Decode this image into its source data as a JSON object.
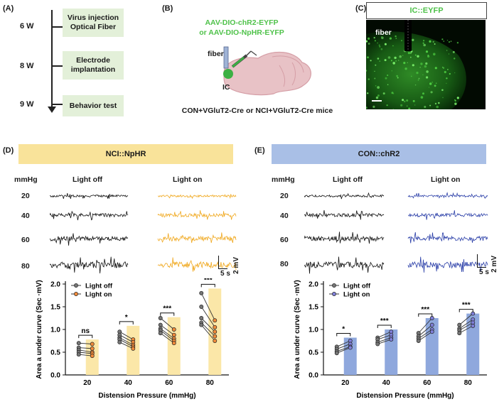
{
  "panels": {
    "A": {
      "label": "(A)",
      "weeks": [
        "6 W",
        "8 W",
        "9 W"
      ],
      "steps": [
        "Virus injection\nOptical Fiber",
        "Electrode\nimplantation",
        "Behavior test"
      ]
    },
    "B": {
      "label": "(B)",
      "virus_line1": "AAV-DIO-chR2-EYFP",
      "virus_line2": "or AAV-DIO-NpHR-EYFP",
      "fiber": "fiber",
      "ic": "IC",
      "mice": "CON+VGluT2-Cre or NCI+VGluT2-Cre mice"
    },
    "C": {
      "label": "(C)",
      "title": "IC::EYFP",
      "fiber": "fiber"
    },
    "D": {
      "label": "(D)",
      "banner": "NCI::NpHR",
      "unit": "mmHg",
      "col_off": "Light off",
      "col_on": "Light on",
      "rows": [
        "20",
        "40",
        "60",
        "80"
      ],
      "scale_v": "2 mV",
      "scale_t": "5 s",
      "colors": {
        "banner": "#f9e39a",
        "off": "#111111",
        "on": "#f0a81e",
        "bar": "#fbe7a8",
        "dot_on": "#f08a3a"
      }
    },
    "E": {
      "label": "(E)",
      "banner": "CON::chR2",
      "unit": "mmHg",
      "col_off": "Light off",
      "col_on": "Light on",
      "rows": [
        "20",
        "40",
        "60",
        "80"
      ],
      "scale_v": "2 mV",
      "scale_t": "5 s",
      "colors": {
        "banner": "#a9bfe6",
        "off": "#111111",
        "on": "#2b3fa8",
        "bar": "#8fa8dd",
        "dot_on": "#7f7fd8"
      }
    }
  },
  "chart_data": [
    {
      "type": "bar",
      "panel": "D",
      "categories": [
        "20",
        "40",
        "60",
        "80"
      ],
      "series": [
        {
          "name": "Light off",
          "values": [
            0.55,
            0.82,
            1.0,
            1.35
          ]
        },
        {
          "name": "Light on",
          "values": [
            0.78,
            1.08,
            1.27,
            1.9
          ]
        }
      ],
      "bar_series": "Light on",
      "paired_points": [
        {
          "off": [
            0.7,
            0.6,
            0.55,
            0.5,
            0.45
          ],
          "on": [
            0.68,
            0.58,
            0.5,
            0.47,
            0.42
          ]
        },
        {
          "off": [
            0.95,
            0.88,
            0.82,
            0.78,
            0.72
          ],
          "on": [
            0.78,
            0.72,
            0.66,
            0.62,
            0.58
          ]
        },
        {
          "off": [
            1.25,
            1.1,
            1.02,
            0.98,
            0.92
          ],
          "on": [
            1.0,
            0.88,
            0.8,
            0.75,
            0.7
          ]
        },
        {
          "off": [
            1.8,
            1.5,
            1.25,
            1.15,
            1.1
          ],
          "on": [
            1.2,
            1.05,
            0.95,
            0.85,
            0.75
          ]
        }
      ],
      "significance": [
        "ns",
        "*",
        "***",
        "***"
      ],
      "xlabel": "Distension Pressure (mmHg)",
      "ylabel": "Area a under curve (Sec ·mV)",
      "yticks": [
        "0.0",
        "0.5",
        "1.0",
        "1.5",
        "2.0"
      ],
      "ylim": [
        0,
        2.0
      ],
      "legend": "top-left"
    },
    {
      "type": "bar",
      "panel": "E",
      "categories": [
        "20",
        "40",
        "60",
        "80"
      ],
      "series": [
        {
          "name": "Light off",
          "values": [
            0.55,
            0.72,
            0.85,
            1.0
          ]
        },
        {
          "name": "Light on",
          "values": [
            0.82,
            1.0,
            1.25,
            1.35
          ]
        }
      ],
      "bar_series": "Light on",
      "paired_points": [
        {
          "off": [
            0.62,
            0.57,
            0.52,
            0.48
          ],
          "on": [
            0.75,
            0.68,
            0.62,
            0.6
          ]
        },
        {
          "off": [
            0.82,
            0.78,
            0.72,
            0.68
          ],
          "on": [
            0.95,
            0.88,
            0.82,
            0.78
          ]
        },
        {
          "off": [
            0.92,
            0.85,
            0.8,
            0.75
          ],
          "on": [
            1.25,
            1.1,
            1.0,
            0.95
          ]
        },
        {
          "off": [
            1.1,
            1.02,
            0.98,
            0.92
          ],
          "on": [
            1.35,
            1.22,
            1.15,
            1.08
          ]
        }
      ],
      "significance": [
        "*",
        "***",
        "***",
        "***"
      ],
      "xlabel": "Distension Pressure (mmHg)",
      "ylabel": "Area a under curve (Sec ·mV)",
      "yticks": [
        "0.0",
        "0.5",
        "1.0",
        "1.5",
        "2.0"
      ],
      "ylim": [
        0,
        2.0
      ],
      "legend": "top-left"
    }
  ]
}
